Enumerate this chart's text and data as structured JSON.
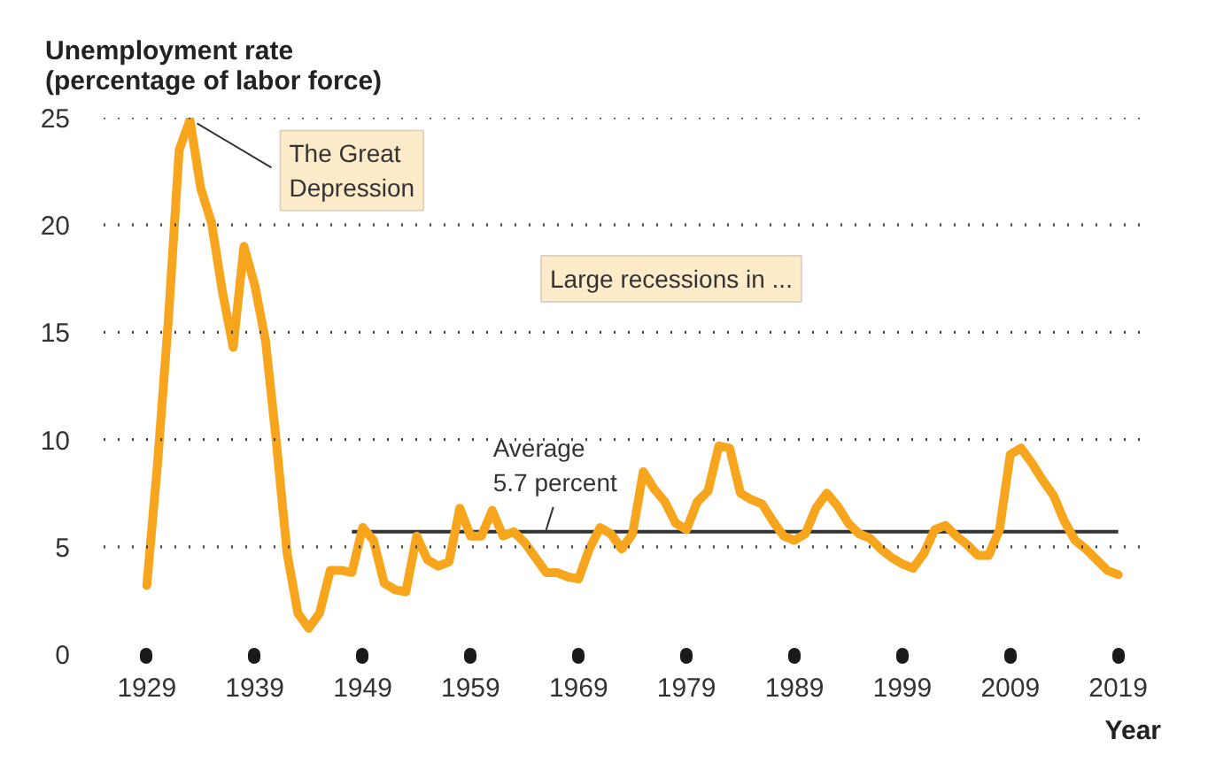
{
  "chart_data": {
    "type": "line",
    "ylabel": "Unemployment rate\n(percentage of labor force)",
    "xlabel": "Year",
    "x": [
      1929,
      1930,
      1931,
      1932,
      1933,
      1934,
      1935,
      1936,
      1937,
      1938,
      1939,
      1940,
      1941,
      1942,
      1943,
      1944,
      1945,
      1946,
      1947,
      1948,
      1949,
      1950,
      1951,
      1952,
      1953,
      1954,
      1955,
      1956,
      1957,
      1958,
      1959,
      1960,
      1961,
      1962,
      1963,
      1964,
      1965,
      1966,
      1967,
      1968,
      1969,
      1970,
      1971,
      1972,
      1973,
      1974,
      1975,
      1976,
      1977,
      1978,
      1979,
      1980,
      1981,
      1982,
      1983,
      1984,
      1985,
      1986,
      1987,
      1988,
      1989,
      1990,
      1991,
      1992,
      1993,
      1994,
      1995,
      1996,
      1997,
      1998,
      1999,
      2000,
      2001,
      2002,
      2003,
      2004,
      2005,
      2006,
      2007,
      2008,
      2009,
      2010,
      2011,
      2012,
      2013,
      2014,
      2015,
      2016,
      2017,
      2018,
      2019
    ],
    "series": [
      {
        "type": "line",
        "x": [
          1948,
          2019
        ],
        "values": [
          5.7,
          5.7
        ],
        "color": "#333333"
      },
      {
        "color": "#f7a51c",
        "values": [
          3.2,
          8.9,
          15.6,
          23.5,
          24.9,
          21.7,
          20.1,
          16.9,
          14.3,
          19.0,
          17.2,
          14.6,
          9.9,
          4.7,
          1.9,
          1.2,
          1.9,
          3.9,
          3.9,
          3.8,
          5.9,
          5.3,
          3.3,
          3.0,
          2.9,
          5.5,
          4.4,
          4.1,
          4.3,
          6.8,
          5.5,
          5.5,
          6.7,
          5.5,
          5.7,
          5.2,
          4.5,
          3.8,
          3.8,
          3.6,
          3.5,
          4.9,
          5.9,
          5.6,
          4.9,
          5.6,
          8.5,
          7.7,
          7.1,
          6.1,
          5.8,
          7.1,
          7.6,
          9.7,
          9.6,
          7.5,
          7.2,
          7.0,
          6.2,
          5.5,
          5.3,
          5.6,
          6.8,
          7.5,
          6.9,
          6.1,
          5.6,
          5.4,
          4.9,
          4.5,
          4.2,
          4.0,
          4.7,
          5.8,
          6.0,
          5.5,
          5.1,
          4.6,
          4.6,
          5.8,
          9.3,
          9.6,
          8.9,
          8.1,
          7.4,
          6.2,
          5.3,
          4.9,
          4.4,
          3.9,
          3.7
        ]
      }
    ],
    "xlim": [
      1925,
      2021
    ],
    "xticks": [
      1929,
      1939,
      1949,
      1959,
      1969,
      1979,
      1989,
      1999,
      2009,
      2019
    ],
    "ylim": [
      0,
      25
    ],
    "yticks": [
      0,
      5,
      10,
      15,
      20,
      25
    ],
    "grid": "y",
    "annotations": [
      {
        "text": "The Great\nDepression",
        "x": 1933,
        "y": 24.9
      },
      "Large recessions in ...",
      {
        "text": "Average\n5.7 percent",
        "x": 1966,
        "y": 5.7
      }
    ]
  }
}
